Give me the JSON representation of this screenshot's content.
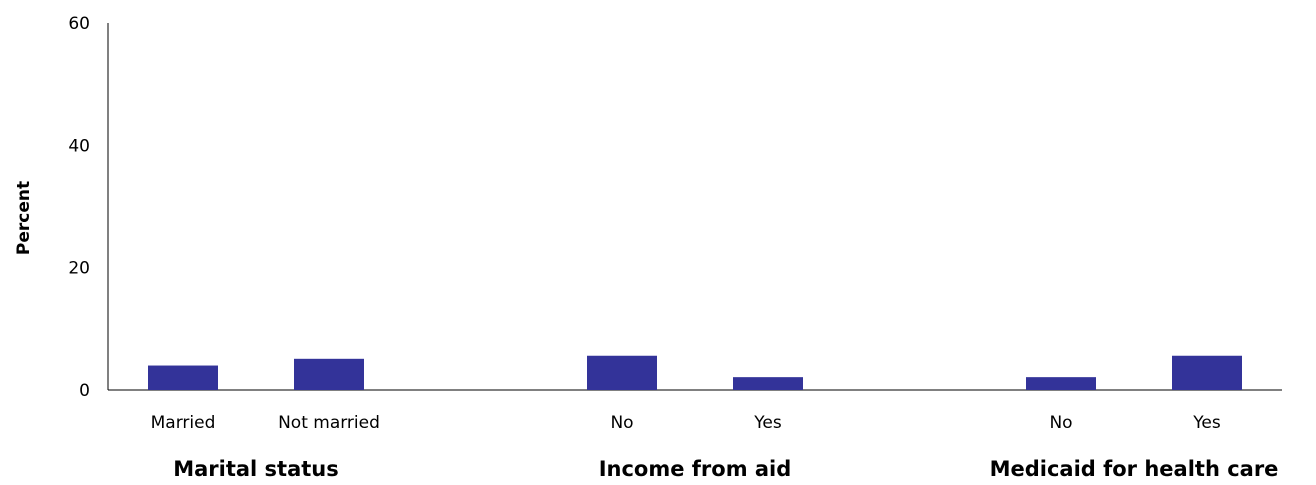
{
  "chart_data": {
    "type": "bar",
    "ylabel": "Percent",
    "ylim": [
      0,
      60
    ],
    "yticks": [
      0,
      20,
      40,
      60
    ],
    "grid": false,
    "bar_color": "#333399",
    "groups": [
      {
        "label": "Marital status",
        "categories": [
          "Married",
          "Not married"
        ],
        "values": [
          4.0,
          5.1
        ]
      },
      {
        "label": "Income from aid",
        "categories": [
          "No",
          "Yes"
        ],
        "values": [
          5.6,
          2.1
        ]
      },
      {
        "label": "Medicaid for health care",
        "categories": [
          "No",
          "Yes"
        ],
        "values": [
          2.1,
          5.6
        ]
      }
    ]
  }
}
